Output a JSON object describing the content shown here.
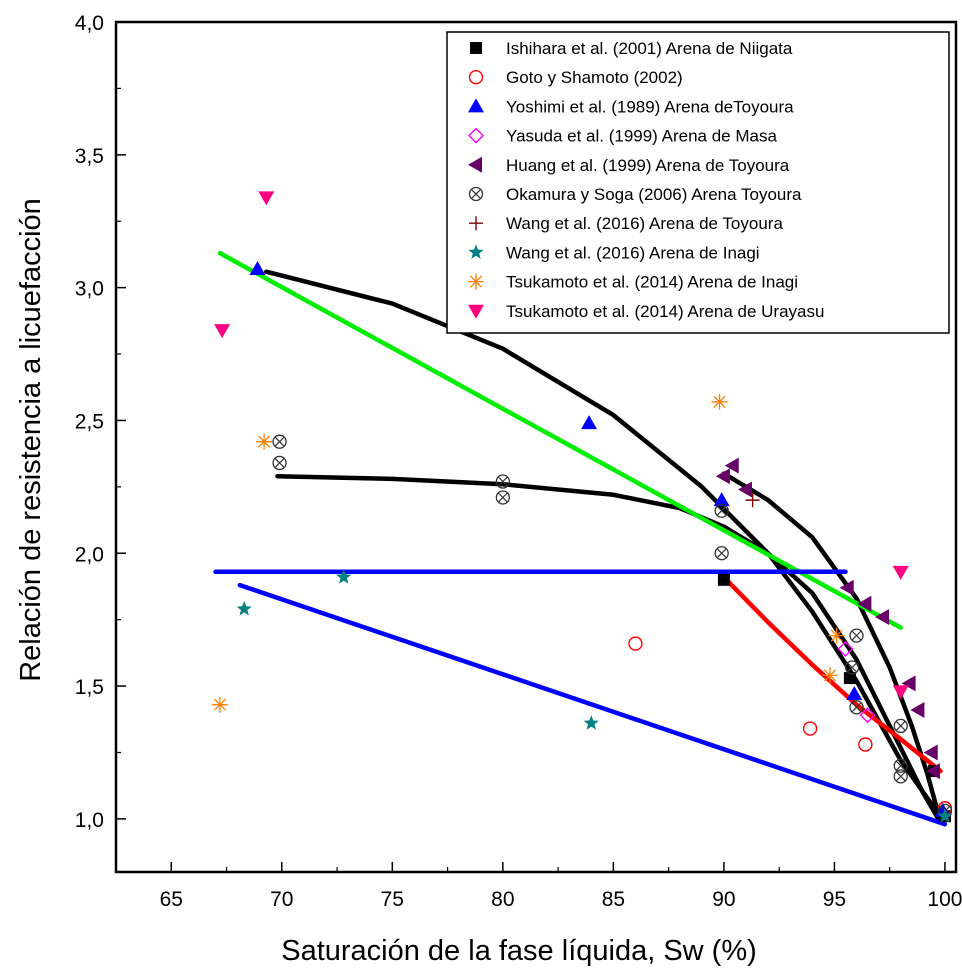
{
  "chart_data": {
    "type": "scatter",
    "xlabel": "Saturación de la fase líquida, Sw (%)",
    "ylabel": "Relación de resistencia a licuefacción",
    "xlim": [
      62.5,
      100.5
    ],
    "ylim": [
      0.8,
      4.0
    ],
    "xticks": [
      65,
      70,
      75,
      80,
      85,
      90,
      95,
      100
    ],
    "xtick_labels": [
      "65",
      "70",
      "75",
      "80",
      "85",
      "90",
      "95",
      "100"
    ],
    "yticks": [
      1.0,
      1.5,
      2.0,
      2.5,
      3.0,
      3.5,
      4.0
    ],
    "ytick_labels": [
      "1,0",
      "1,5",
      "2,0",
      "2,5",
      "3,0",
      "3,5",
      "4,0"
    ],
    "grid": false,
    "legend_position": "top-right",
    "series": [
      {
        "name": "Ishihara et al. (2001)  Arena de Niigata",
        "marker": "square",
        "color": "#000000",
        "points": [
          [
            90.0,
            1.9
          ],
          [
            95.7,
            1.53
          ],
          [
            99.5,
            1.18
          ],
          [
            100.0,
            1.01
          ]
        ]
      },
      {
        "name": "Goto y Shamoto (2002)",
        "marker": "circle-open",
        "color": "#ff0000",
        "points": [
          [
            86.0,
            1.66
          ],
          [
            93.9,
            1.34
          ],
          [
            96.4,
            1.28
          ],
          [
            100.0,
            1.04
          ]
        ]
      },
      {
        "name": "Yoshimi et al. (1989) Arena deToyoura",
        "marker": "triangle-up",
        "color": "#0000ff",
        "points": [
          [
            68.9,
            3.07
          ],
          [
            83.9,
            2.49
          ],
          [
            89.9,
            2.2
          ],
          [
            95.9,
            1.47
          ],
          [
            99.9,
            1.03
          ]
        ]
      },
      {
        "name": "Yasuda et al. (1999) Arena de Masa",
        "marker": "diamond-open",
        "color": "#ff00ff",
        "points": [
          [
            95.5,
            1.64
          ],
          [
            96.5,
            1.39
          ]
        ]
      },
      {
        "name": "Huang et al. (1999)  Arena de Toyoura",
        "marker": "triangle-left",
        "color": "#660066",
        "points": [
          [
            90.0,
            2.29
          ],
          [
            90.4,
            2.33
          ],
          [
            91.0,
            2.24
          ],
          [
            95.6,
            1.87
          ],
          [
            96.4,
            1.81
          ],
          [
            97.2,
            1.76
          ],
          [
            98.4,
            1.51
          ],
          [
            98.8,
            1.41
          ],
          [
            99.4,
            1.25
          ],
          [
            99.5,
            1.18
          ]
        ]
      },
      {
        "name": "Okamura y Soga (2006) Arena Toyoura",
        "marker": "circle-x",
        "color": "#333333",
        "points": [
          [
            69.9,
            2.42
          ],
          [
            69.9,
            2.34
          ],
          [
            80.0,
            2.27
          ],
          [
            80.0,
            2.21
          ],
          [
            89.9,
            2.16
          ],
          [
            89.9,
            2.0
          ],
          [
            96.0,
            1.69
          ],
          [
            95.8,
            1.57
          ],
          [
            96.0,
            1.42
          ],
          [
            98.0,
            1.35
          ],
          [
            98.0,
            1.2
          ],
          [
            98.0,
            1.16
          ],
          [
            100.0,
            1.03
          ]
        ]
      },
      {
        "name": "Wang et al. (2016) Arena de Toyoura",
        "marker": "plus",
        "color": "#800000",
        "points": [
          [
            91.3,
            2.2
          ]
        ]
      },
      {
        "name": "Wang et al. (2016) Arena de Inagi",
        "marker": "star",
        "color": "#008080",
        "points": [
          [
            68.3,
            1.79
          ],
          [
            72.8,
            1.91
          ],
          [
            84.0,
            1.36
          ],
          [
            100.0,
            1.01
          ]
        ]
      },
      {
        "name": "Tsukamoto et al. (2014) Arena de Inagi",
        "marker": "asterisk",
        "color": "#ff8000",
        "points": [
          [
            67.2,
            1.43
          ],
          [
            69.2,
            2.42
          ],
          [
            89.8,
            2.57
          ],
          [
            95.1,
            1.69
          ],
          [
            94.8,
            1.54
          ]
        ]
      },
      {
        "name": "Tsukamoto et al. (2014) Arena de Urayasu",
        "marker": "triangle-down",
        "color": "#ff0080",
        "points": [
          [
            67.3,
            2.84
          ],
          [
            69.3,
            3.34
          ],
          [
            98.0,
            1.93
          ],
          [
            98.0,
            1.48
          ]
        ]
      }
    ],
    "fit_lines": [
      {
        "color": "#000000",
        "points": [
          [
            69.3,
            3.06
          ],
          [
            75.0,
            2.94
          ],
          [
            80.0,
            2.77
          ],
          [
            85.0,
            2.52
          ],
          [
            89.0,
            2.25
          ],
          [
            92.0,
            2.0
          ],
          [
            94.0,
            1.78
          ],
          [
            96.0,
            1.52
          ],
          [
            98.0,
            1.22
          ],
          [
            99.7,
            1.02
          ]
        ]
      },
      {
        "color": "#000000",
        "points": [
          [
            69.8,
            2.29
          ],
          [
            75.0,
            2.28
          ],
          [
            80.0,
            2.26
          ],
          [
            85.0,
            2.22
          ],
          [
            88.0,
            2.17
          ],
          [
            90.0,
            2.1
          ],
          [
            92.0,
            2.0
          ],
          [
            94.0,
            1.85
          ],
          [
            96.0,
            1.6
          ],
          [
            97.5,
            1.35
          ],
          [
            99.0,
            1.1
          ],
          [
            99.7,
            1.0
          ]
        ]
      },
      {
        "color": "#000000",
        "points": [
          [
            90.0,
            2.3
          ],
          [
            92.0,
            2.2
          ],
          [
            94.0,
            2.06
          ],
          [
            96.0,
            1.83
          ],
          [
            97.5,
            1.57
          ],
          [
            98.5,
            1.35
          ],
          [
            99.2,
            1.17
          ],
          [
            99.7,
            1.02
          ]
        ]
      },
      {
        "color": "#00ee00",
        "points": [
          [
            67.2,
            3.13
          ],
          [
            98.0,
            1.72
          ]
        ]
      },
      {
        "color": "#ff0000",
        "points": [
          [
            90.0,
            1.91
          ],
          [
            92.0,
            1.74
          ],
          [
            94.0,
            1.58
          ],
          [
            96.0,
            1.43
          ],
          [
            98.0,
            1.3
          ],
          [
            99.8,
            1.18
          ]
        ]
      },
      {
        "color": "#0000ff",
        "points": [
          [
            67.0,
            1.93
          ],
          [
            95.5,
            1.93
          ]
        ]
      },
      {
        "color": "#0000ff",
        "points": [
          [
            68.1,
            1.88
          ],
          [
            100.0,
            0.98
          ]
        ]
      }
    ]
  }
}
